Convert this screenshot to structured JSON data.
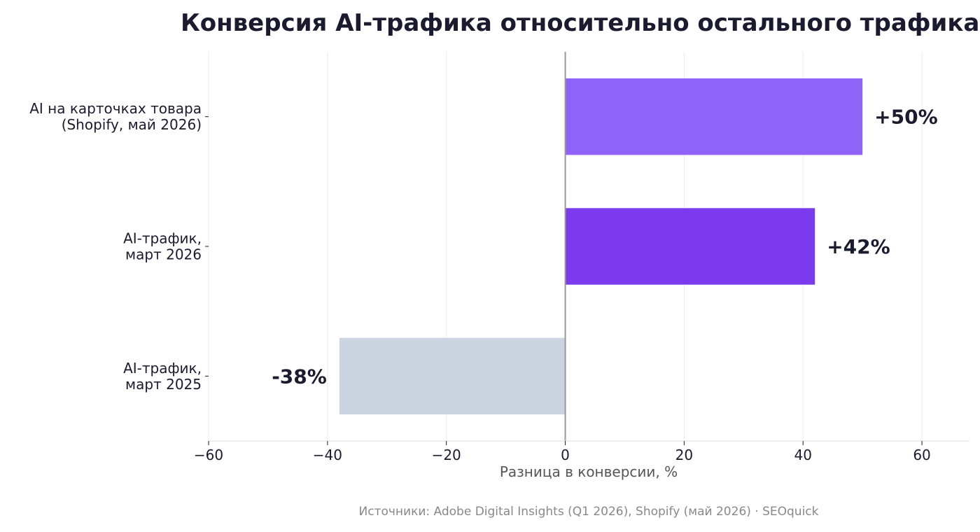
{
  "chart_data": {
    "type": "bar",
    "orientation": "horizontal",
    "title": "Конверсия AI-трафика относительно остального трафика",
    "xlabel": "Разница в конверсии, %",
    "ylabel": "",
    "xlim": [
      -60,
      68
    ],
    "xticks": [
      -60,
      -40,
      -20,
      0,
      20,
      40,
      60
    ],
    "xtick_labels": [
      "−60",
      "−40",
      "−20",
      "0",
      "20",
      "40",
      "60"
    ],
    "grid": "vertical",
    "categories": [
      [
        "AI на карточках товара",
        "(Shopify, май 2026)"
      ],
      [
        "AI-трафик,",
        "март 2026"
      ],
      [
        "AI-трафик,",
        "март 2025"
      ]
    ],
    "values": [
      50,
      42,
      -38
    ],
    "data_labels": [
      "+50%",
      "+42%",
      "-38%"
    ],
    "colors": [
      "#8f63f8",
      "#7c3aed",
      "#cbd5e1"
    ],
    "source": "Источники: Adobe Digital Insights (Q1 2026), Shopify (май 2026) · SEOquick"
  }
}
